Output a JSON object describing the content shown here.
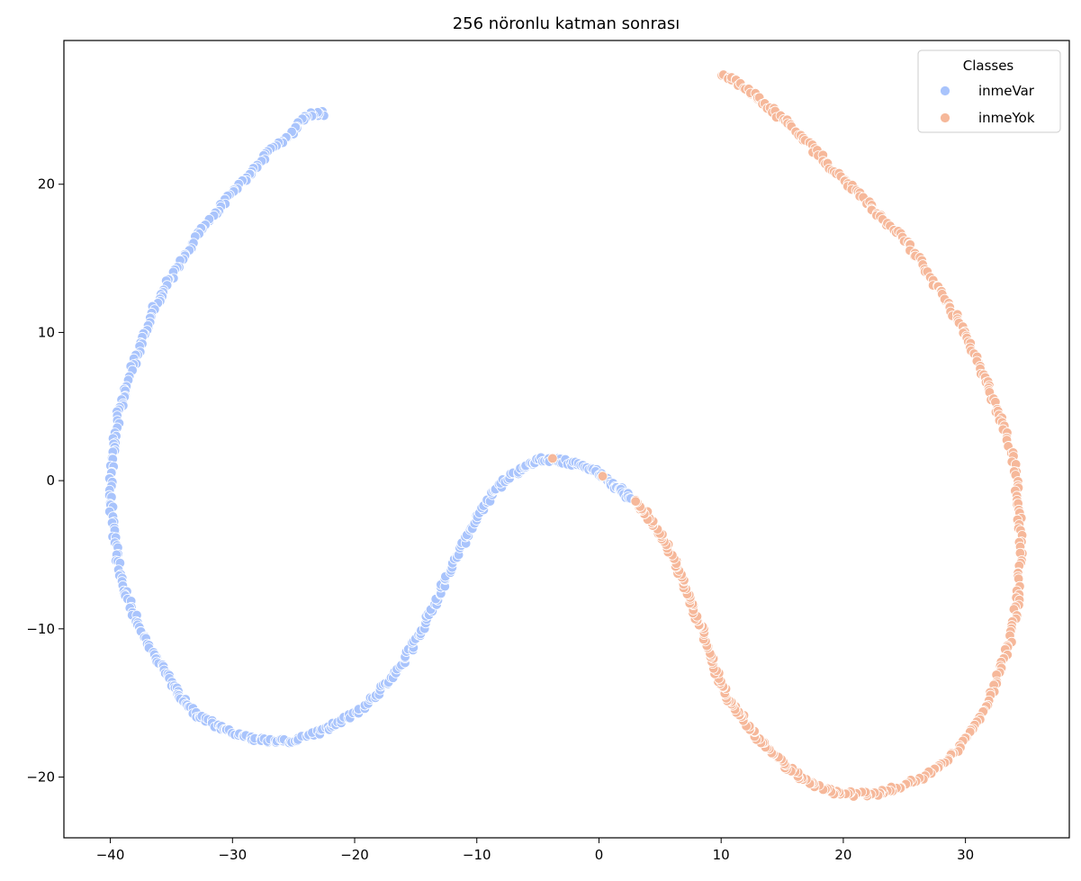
{
  "chart_data": {
    "type": "scatter",
    "title": "256 nöronlu katman sonrası",
    "xlabel": "",
    "ylabel": "",
    "xlim": [
      -43.8,
      38.5
    ],
    "ylim": [
      -24.1,
      29.7
    ],
    "xticks": [
      -40,
      -30,
      -20,
      -10,
      0,
      10,
      20,
      30
    ],
    "yticks": [
      -20,
      -10,
      0,
      10,
      20
    ],
    "xtick_labels": [
      "−40",
      "−30",
      "−20",
      "−10",
      "0",
      "10",
      "20",
      "30"
    ],
    "ytick_labels": [
      "−20",
      "−10",
      "0",
      "10",
      "20"
    ],
    "grid": false,
    "legend": {
      "title": "Classes",
      "position": "top-right"
    },
    "series": [
      {
        "name": "inmeVar",
        "color": "#a9c4fc",
        "path": [
          [
            -22.5,
            24.8
          ],
          [
            -24.0,
            24.7
          ],
          [
            -25.3,
            23.4
          ],
          [
            -27.0,
            22.2
          ],
          [
            -28.5,
            20.8
          ],
          [
            -30.0,
            19.5
          ],
          [
            -31.5,
            18.0
          ],
          [
            -33.0,
            16.4
          ],
          [
            -34.5,
            14.5
          ],
          [
            -35.5,
            13.0
          ],
          [
            -36.5,
            11.5
          ],
          [
            -37.3,
            9.8
          ],
          [
            -38.0,
            8.0
          ],
          [
            -38.8,
            6.0
          ],
          [
            -39.3,
            4.5
          ],
          [
            -39.7,
            2.5
          ],
          [
            -39.9,
            0.5
          ],
          [
            -40.0,
            -1.5
          ],
          [
            -39.7,
            -3.5
          ],
          [
            -39.4,
            -5.5
          ],
          [
            -38.8,
            -7.5
          ],
          [
            -38.0,
            -9.2
          ],
          [
            -37.0,
            -10.8
          ],
          [
            -36.0,
            -12.3
          ],
          [
            -35.0,
            -13.7
          ],
          [
            -34.0,
            -14.8
          ],
          [
            -32.8,
            -15.8
          ],
          [
            -31.5,
            -16.5
          ],
          [
            -30.0,
            -17.0
          ],
          [
            -28.5,
            -17.4
          ],
          [
            -27.0,
            -17.6
          ],
          [
            -25.5,
            -17.6
          ],
          [
            -24.0,
            -17.3
          ],
          [
            -22.5,
            -16.8
          ],
          [
            -21.0,
            -16.2
          ],
          [
            -19.5,
            -15.4
          ],
          [
            -18.0,
            -14.3
          ],
          [
            -16.7,
            -13.0
          ],
          [
            -15.5,
            -11.5
          ],
          [
            -14.5,
            -10.0
          ],
          [
            -13.5,
            -8.4
          ],
          [
            -12.6,
            -6.8
          ],
          [
            -11.7,
            -5.2
          ],
          [
            -10.7,
            -3.6
          ],
          [
            -9.6,
            -2.0
          ],
          [
            -8.5,
            -0.6
          ],
          [
            -7.3,
            0.3
          ],
          [
            -6.0,
            1.0
          ],
          [
            -4.8,
            1.4
          ],
          [
            -3.5,
            1.4
          ],
          [
            -2.2,
            1.2
          ],
          [
            -1.0,
            0.9
          ],
          [
            0.0,
            0.5
          ],
          [
            1.0,
            -0.2
          ],
          [
            1.8,
            -0.6
          ],
          [
            2.6,
            -1.2
          ]
        ]
      },
      {
        "name": "inmeYok",
        "color": "#f6b89a",
        "path": [
          [
            10.2,
            27.5
          ],
          [
            11.5,
            26.8
          ],
          [
            13.0,
            25.8
          ],
          [
            14.5,
            24.8
          ],
          [
            16.0,
            23.7
          ],
          [
            17.5,
            22.4
          ],
          [
            19.0,
            21.2
          ],
          [
            20.5,
            20.0
          ],
          [
            22.0,
            18.7
          ],
          [
            23.5,
            17.4
          ],
          [
            25.0,
            16.3
          ],
          [
            26.3,
            14.8
          ],
          [
            27.5,
            13.3
          ],
          [
            28.7,
            11.8
          ],
          [
            29.8,
            10.2
          ],
          [
            30.8,
            8.5
          ],
          [
            31.7,
            6.8
          ],
          [
            32.5,
            5.0
          ],
          [
            33.3,
            3.2
          ],
          [
            34.0,
            1.0
          ],
          [
            34.3,
            -1.2
          ],
          [
            34.5,
            -3.5
          ],
          [
            34.5,
            -5.8
          ],
          [
            34.3,
            -8.0
          ],
          [
            33.8,
            -10.3
          ],
          [
            33.0,
            -12.5
          ],
          [
            32.0,
            -14.6
          ],
          [
            30.8,
            -16.5
          ],
          [
            29.3,
            -18.2
          ],
          [
            27.8,
            -19.4
          ],
          [
            26.0,
            -20.2
          ],
          [
            24.2,
            -20.8
          ],
          [
            22.5,
            -21.1
          ],
          [
            20.8,
            -21.2
          ],
          [
            19.2,
            -21.0
          ],
          [
            17.7,
            -20.6
          ],
          [
            16.4,
            -20.0
          ],
          [
            15.2,
            -19.2
          ],
          [
            14.0,
            -18.2
          ],
          [
            12.9,
            -17.2
          ],
          [
            11.9,
            -16.2
          ],
          [
            11.0,
            -15.3
          ],
          [
            10.3,
            -14.3
          ],
          [
            9.6,
            -13.0
          ],
          [
            9.0,
            -11.5
          ],
          [
            8.4,
            -10.0
          ],
          [
            7.7,
            -8.5
          ],
          [
            7.0,
            -7.0
          ],
          [
            6.3,
            -5.6
          ],
          [
            5.5,
            -4.3
          ],
          [
            4.6,
            -3.1
          ],
          [
            3.6,
            -2.0
          ],
          [
            3.0,
            -1.4
          ]
        ],
        "extra_points": [
          [
            -3.8,
            1.5
          ],
          [
            0.3,
            0.3
          ]
        ]
      }
    ]
  }
}
